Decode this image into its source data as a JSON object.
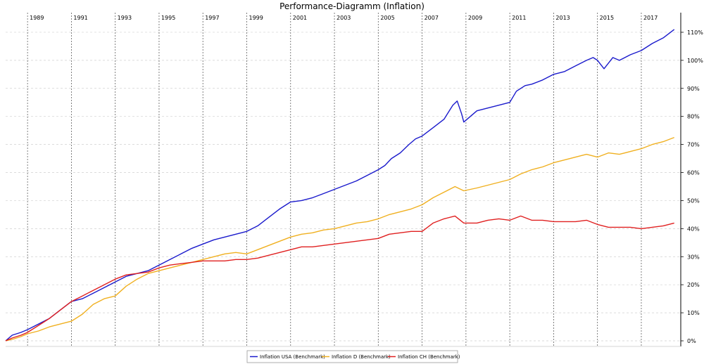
{
  "chart_data": {
    "type": "line",
    "title": "Performance-Diagramm (Inflation)",
    "xlabel": "",
    "ylabel": "",
    "xlim": [
      1988.0,
      2018.8
    ],
    "ylim": [
      -2,
      117
    ],
    "x_ticks": [
      1989,
      1991,
      1993,
      1995,
      1997,
      1999,
      2001,
      2003,
      2005,
      2007,
      2009,
      2011,
      2013,
      2015,
      2017
    ],
    "y_ticks": [
      0,
      10,
      20,
      30,
      40,
      50,
      60,
      70,
      80,
      90,
      100,
      110
    ],
    "y_tick_suffix": "%",
    "grid": true,
    "legend_position": "bottom-center",
    "series": [
      {
        "name": "Inflation USA (Benchmark)",
        "color": "#1a1acc",
        "x": [
          1988.0,
          1988.3,
          1988.7,
          1989.0,
          1989.5,
          1990.0,
          1990.5,
          1991.0,
          1991.5,
          1992.0,
          1992.5,
          1993.0,
          1993.5,
          1994.0,
          1994.5,
          1995.0,
          1995.5,
          1996.0,
          1996.5,
          1997.0,
          1997.5,
          1998.0,
          1998.5,
          1999.0,
          1999.5,
          2000.0,
          2000.5,
          2001.0,
          2001.5,
          2002.0,
          2002.5,
          2003.0,
          2003.5,
          2004.0,
          2004.5,
          2005.0,
          2005.3,
          2005.6,
          2006.0,
          2006.4,
          2006.7,
          2007.0,
          2007.5,
          2008.0,
          2008.4,
          2008.6,
          2008.8,
          2008.9,
          2009.2,
          2009.5,
          2010.0,
          2010.5,
          2011.0,
          2011.3,
          2011.7,
          2012.0,
          2012.5,
          2013.0,
          2013.5,
          2014.0,
          2014.5,
          2014.8,
          2015.0,
          2015.3,
          2015.7,
          2016.0,
          2016.5,
          2017.0,
          2017.5,
          2018.0,
          2018.5
        ],
        "values": [
          0,
          2,
          3,
          4,
          6,
          8,
          11,
          14,
          15,
          17,
          19,
          21,
          23,
          24,
          25,
          27,
          29,
          31,
          33,
          34.5,
          36,
          37,
          38,
          39,
          41,
          44,
          47,
          49.5,
          50,
          51,
          52.5,
          54,
          55.5,
          57,
          59,
          61,
          62.5,
          65,
          67,
          70,
          72,
          73,
          76,
          79,
          84,
          85.5,
          81,
          78,
          80,
          82,
          83,
          84,
          85,
          89,
          91,
          91.5,
          93,
          95,
          96,
          98,
          100,
          101,
          100,
          97,
          101,
          100,
          102,
          103.5,
          106,
          108,
          111
        ]
      },
      {
        "name": "Inflation D (Benchmark)",
        "color": "#f0b020",
        "x": [
          1988.0,
          1988.3,
          1988.7,
          1989.0,
          1989.5,
          1990.0,
          1990.5,
          1991.0,
          1991.5,
          1992.0,
          1992.5,
          1993.0,
          1993.5,
          1994.0,
          1994.5,
          1995.0,
          1995.5,
          1996.0,
          1996.5,
          1997.0,
          1997.5,
          1998.0,
          1998.5,
          1999.0,
          1999.5,
          2000.0,
          2000.5,
          2001.0,
          2001.5,
          2002.0,
          2002.5,
          2003.0,
          2003.5,
          2004.0,
          2004.5,
          2005.0,
          2005.5,
          2006.0,
          2006.5,
          2007.0,
          2007.5,
          2008.0,
          2008.5,
          2008.9,
          2009.5,
          2010.0,
          2010.5,
          2011.0,
          2011.5,
          2012.0,
          2012.5,
          2013.0,
          2013.5,
          2014.0,
          2014.5,
          2015.0,
          2015.5,
          2016.0,
          2016.5,
          2017.0,
          2017.5,
          2018.0,
          2018.5
        ],
        "values": [
          0,
          0.5,
          1.5,
          2.5,
          3.5,
          5,
          6,
          7,
          9.5,
          13,
          15,
          16,
          19.5,
          22,
          24,
          25,
          26,
          27,
          28,
          29,
          30,
          31,
          31.5,
          31,
          32.5,
          34,
          35.5,
          37,
          38,
          38.5,
          39.5,
          40,
          41,
          42,
          42.5,
          43.5,
          45,
          46,
          47,
          48.5,
          51,
          53,
          55,
          53.5,
          54.5,
          55.5,
          56.5,
          57.5,
          59.5,
          61,
          62,
          63.5,
          64.5,
          65.5,
          66.5,
          65.5,
          67,
          66.5,
          67.5,
          68.5,
          70,
          71,
          72.5
        ]
      },
      {
        "name": "Inflation CH (Benchmark)",
        "color": "#e02020",
        "x": [
          1988.0,
          1988.3,
          1988.7,
          1989.0,
          1989.5,
          1990.0,
          1990.5,
          1991.0,
          1991.5,
          1992.0,
          1992.5,
          1993.0,
          1993.5,
          1994.0,
          1994.5,
          1995.0,
          1995.5,
          1996.0,
          1996.5,
          1997.0,
          1997.5,
          1998.0,
          1998.5,
          1999.0,
          1999.5,
          2000.0,
          2000.5,
          2001.0,
          2001.5,
          2002.0,
          2002.5,
          2003.0,
          2003.5,
          2004.0,
          2004.5,
          2005.0,
          2005.5,
          2006.0,
          2006.5,
          2007.0,
          2007.5,
          2008.0,
          2008.5,
          2008.9,
          2009.5,
          2010.0,
          2010.5,
          2011.0,
          2011.5,
          2012.0,
          2012.5,
          2013.0,
          2013.5,
          2014.0,
          2014.5,
          2015.0,
          2015.5,
          2016.0,
          2016.5,
          2017.0,
          2017.5,
          2018.0,
          2018.5
        ],
        "values": [
          0,
          1,
          2,
          3,
          5.5,
          8,
          11,
          14,
          16,
          18,
          20,
          22,
          23.5,
          24,
          24.5,
          26,
          27,
          27.5,
          28,
          28.5,
          28.5,
          28.5,
          29,
          29,
          29.5,
          30.5,
          31.5,
          32.5,
          33.5,
          33.5,
          34,
          34.5,
          35,
          35.5,
          36,
          36.5,
          38,
          38.5,
          39,
          39,
          42,
          43.5,
          44.5,
          42,
          42,
          43,
          43.5,
          43,
          44.5,
          43,
          43,
          42.5,
          42.5,
          42.5,
          43,
          41.5,
          40.5,
          40.5,
          40.5,
          40,
          40.5,
          41,
          42
        ]
      }
    ]
  }
}
